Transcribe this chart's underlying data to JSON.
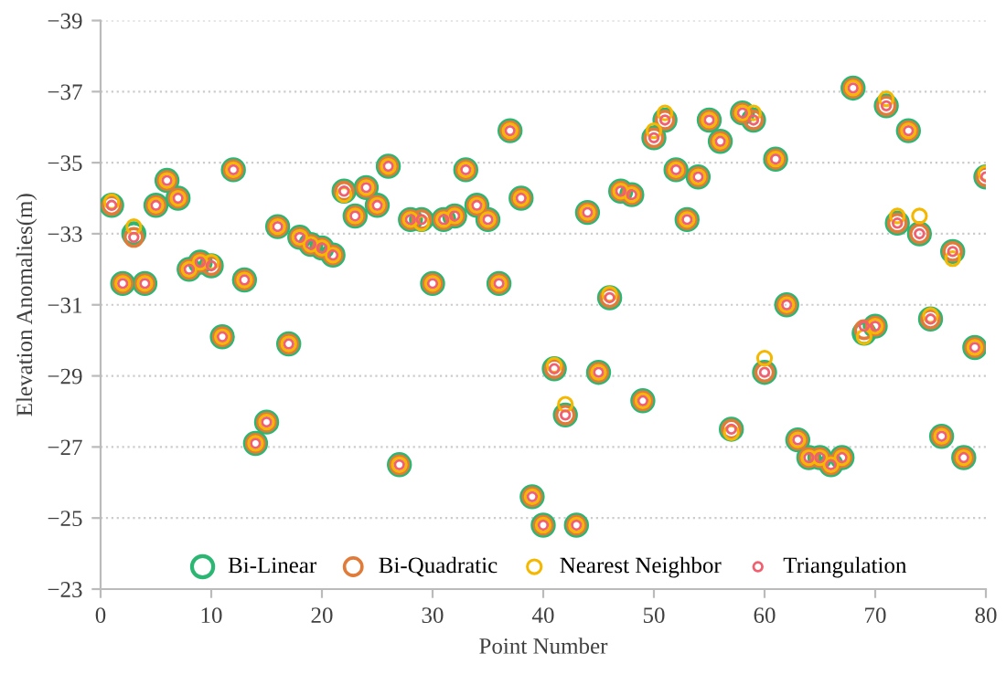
{
  "chart_data": {
    "type": "scatter",
    "xlabel": "Point Number",
    "ylabel": "Elevation Anomalies(m)",
    "xlim": [
      0,
      80
    ],
    "xticks": [
      0,
      10,
      20,
      30,
      40,
      50,
      60,
      70,
      80
    ],
    "ylim": [
      -23,
      -39
    ],
    "yticks": [
      -39,
      -37,
      -35,
      -33,
      -31,
      -29,
      -27,
      -25,
      -23
    ],
    "grid": "y",
    "legend": "bottom",
    "marker": "circle",
    "x": [
      1,
      2,
      3,
      4,
      5,
      6,
      7,
      8,
      9,
      10,
      11,
      12,
      13,
      14,
      15,
      16,
      17,
      18,
      19,
      20,
      21,
      22,
      23,
      24,
      25,
      26,
      27,
      28,
      29,
      30,
      31,
      32,
      33,
      34,
      35,
      36,
      37,
      38,
      39,
      40,
      41,
      42,
      43,
      44,
      45,
      46,
      47,
      48,
      49,
      50,
      51,
      52,
      53,
      54,
      55,
      56,
      57,
      58,
      59,
      60,
      61,
      62,
      63,
      64,
      65,
      66,
      67,
      68,
      69,
      70,
      71,
      72,
      73,
      74,
      75,
      76,
      77,
      78,
      79,
      80
    ],
    "series": [
      {
        "name": "Bi-Linear",
        "color": "#2bb673",
        "values": [
          -33.8,
          -31.6,
          -33.0,
          -31.6,
          -33.8,
          -34.5,
          -34.0,
          -32.0,
          -32.2,
          -32.1,
          -30.1,
          -34.8,
          -31.7,
          -27.1,
          -27.7,
          -33.2,
          -29.9,
          -32.9,
          -32.7,
          -32.6,
          -32.4,
          -34.2,
          -33.5,
          -34.3,
          -33.8,
          -34.9,
          -26.5,
          -33.4,
          -33.4,
          -31.6,
          -33.4,
          -33.5,
          -34.8,
          -33.8,
          -33.4,
          -31.6,
          -35.9,
          -34.0,
          -25.6,
          -24.8,
          -29.2,
          -27.9,
          -24.8,
          -33.6,
          -29.1,
          -31.2,
          -34.2,
          -34.1,
          -28.3,
          -35.7,
          -36.2,
          -34.8,
          -33.4,
          -34.6,
          -36.2,
          -35.6,
          -27.5,
          -36.4,
          -36.2,
          -29.1,
          -35.1,
          -31.0,
          -27.2,
          -26.7,
          -26.7,
          -26.5,
          -26.7,
          -37.1,
          -30.2,
          -30.4,
          -36.6,
          -33.3,
          -35.9,
          -33.0,
          -30.6,
          -27.3,
          -32.5,
          -26.7,
          -29.8,
          -34.6
        ]
      },
      {
        "name": "Bi-Quadratic",
        "color": "#e07b39",
        "values": [
          -33.8,
          -31.6,
          -32.9,
          -31.6,
          -33.8,
          -34.5,
          -34.0,
          -32.0,
          -32.2,
          -32.1,
          -30.1,
          -34.8,
          -31.7,
          -27.1,
          -27.7,
          -33.2,
          -29.9,
          -32.9,
          -32.7,
          -32.6,
          -32.4,
          -34.2,
          -33.5,
          -34.3,
          -33.8,
          -34.9,
          -26.5,
          -33.4,
          -33.4,
          -31.6,
          -33.4,
          -33.5,
          -34.8,
          -33.8,
          -33.4,
          -31.6,
          -35.9,
          -34.0,
          -25.6,
          -24.8,
          -29.2,
          -27.9,
          -24.8,
          -33.6,
          -29.1,
          -31.2,
          -34.2,
          -34.1,
          -28.3,
          -35.7,
          -36.2,
          -34.8,
          -33.4,
          -34.6,
          -36.2,
          -35.6,
          -27.5,
          -36.4,
          -36.2,
          -29.1,
          -35.1,
          -31.0,
          -27.2,
          -26.7,
          -26.7,
          -26.5,
          -26.7,
          -37.1,
          -30.3,
          -30.4,
          -36.6,
          -33.3,
          -35.9,
          -33.0,
          -30.6,
          -27.3,
          -32.5,
          -26.7,
          -29.8,
          -34.6
        ]
      },
      {
        "name": "Nearest Neighbor",
        "color": "#f5b800",
        "values": [
          -33.9,
          -31.6,
          -33.2,
          -31.6,
          -33.8,
          -34.5,
          -34.0,
          -32.0,
          -32.2,
          -32.2,
          -30.1,
          -34.8,
          -31.7,
          -27.1,
          -27.7,
          -33.2,
          -29.9,
          -32.9,
          -32.7,
          -32.6,
          -32.4,
          -34.1,
          -33.5,
          -34.3,
          -33.8,
          -34.9,
          -26.5,
          -33.4,
          -33.3,
          -31.6,
          -33.4,
          -33.5,
          -34.8,
          -33.8,
          -33.4,
          -31.6,
          -35.9,
          -34.0,
          -25.6,
          -24.8,
          -29.3,
          -28.2,
          -24.8,
          -33.6,
          -29.1,
          -31.3,
          -34.2,
          -34.1,
          -28.3,
          -35.9,
          -36.4,
          -34.8,
          -33.4,
          -34.6,
          -36.2,
          -35.6,
          -27.4,
          -36.4,
          -36.4,
          -29.5,
          -35.1,
          -31.0,
          -27.2,
          -26.7,
          -26.7,
          -26.5,
          -26.7,
          -37.1,
          -30.1,
          -30.4,
          -36.8,
          -33.5,
          -35.9,
          -33.5,
          -30.7,
          -27.3,
          -32.3,
          -26.7,
          -29.8,
          -34.7
        ]
      },
      {
        "name": "Triangulation",
        "color": "#f06070",
        "values": [
          -33.8,
          -31.6,
          -32.9,
          -31.6,
          -33.8,
          -34.5,
          -34.0,
          -32.0,
          -32.2,
          -32.1,
          -30.1,
          -34.8,
          -31.7,
          -27.1,
          -27.7,
          -33.2,
          -29.9,
          -32.9,
          -32.7,
          -32.6,
          -32.4,
          -34.2,
          -33.5,
          -34.3,
          -33.8,
          -34.9,
          -26.5,
          -33.4,
          -33.4,
          -31.6,
          -33.4,
          -33.5,
          -34.8,
          -33.8,
          -33.4,
          -31.6,
          -35.9,
          -34.0,
          -25.6,
          -24.8,
          -29.2,
          -27.9,
          -24.8,
          -33.6,
          -29.1,
          -31.2,
          -34.2,
          -34.1,
          -28.3,
          -35.7,
          -36.2,
          -34.8,
          -33.4,
          -34.6,
          -36.2,
          -35.6,
          -27.5,
          -36.4,
          -36.2,
          -29.1,
          -35.1,
          -31.0,
          -27.2,
          -26.7,
          -26.7,
          -26.5,
          -26.7,
          -37.1,
          -30.4,
          -30.4,
          -36.6,
          -33.3,
          -35.9,
          -33.0,
          -30.6,
          -27.3,
          -32.5,
          -26.7,
          -29.8,
          -34.6
        ]
      }
    ]
  }
}
